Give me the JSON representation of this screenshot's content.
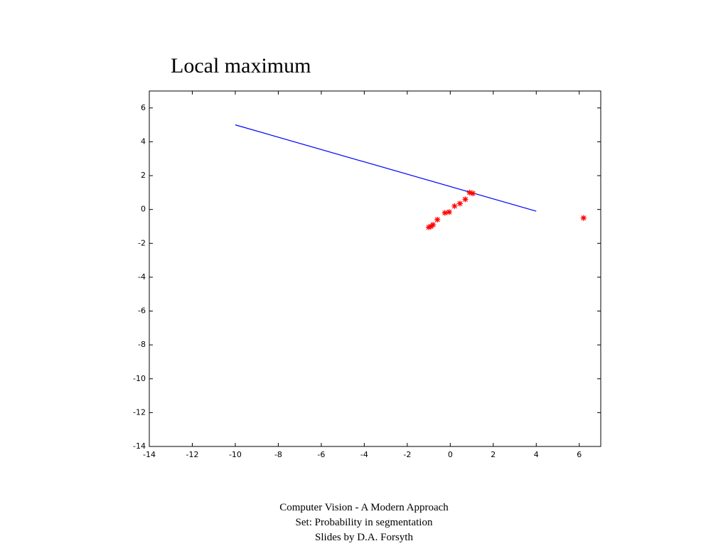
{
  "chart_data": {
    "type": "scatter",
    "title": "Local maximum",
    "xlim": [
      -14,
      7
    ],
    "ylim": [
      -14,
      7
    ],
    "xticks": [
      -14,
      -12,
      -10,
      -8,
      -6,
      -4,
      -2,
      0,
      2,
      4,
      6
    ],
    "yticks": [
      -14,
      -12,
      -10,
      -8,
      -6,
      -4,
      -2,
      0,
      2,
      4,
      6
    ],
    "line": {
      "x": [
        -10,
        4
      ],
      "y": [
        5,
        -0.1
      ],
      "color": "#0000ff"
    },
    "points": {
      "x": [
        -1.0,
        -0.9,
        -0.8,
        -0.6,
        -0.25,
        -0.05,
        0.2,
        0.45,
        0.7,
        0.9,
        1.05,
        6.2
      ],
      "y": [
        -1.05,
        -1.0,
        -0.9,
        -0.6,
        -0.2,
        -0.15,
        0.2,
        0.35,
        0.6,
        1.0,
        0.95,
        -0.5
      ],
      "color": "#ff0000"
    }
  },
  "footer": [
    "Computer Vision - A Modern Approach",
    "Set:  Probability in segmentation",
    "Slides by D.A. Forsyth"
  ]
}
